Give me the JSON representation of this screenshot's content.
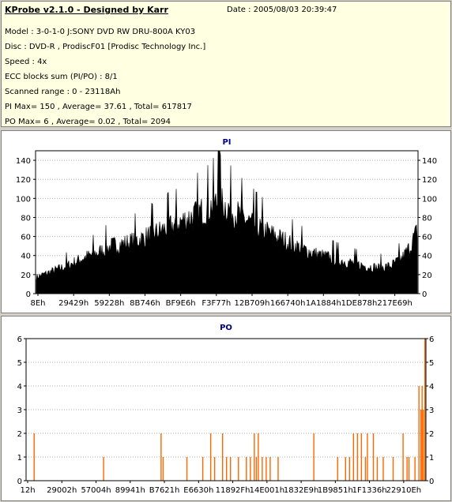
{
  "info": {
    "title": "KProbe v2.1.0 - Designed by Karr",
    "date": "Date : 2005/08/03 20:39:47",
    "model": "Model : 3-0-1-0 J:SONY    DVD RW DRU-800A  KY03",
    "disc": "Disc : DVD-R , ProdiscF01 [Prodisc Technology Inc.]",
    "speed": "Speed : 4x",
    "ecc": "ECC blocks sum (PI/PO) : 8/1",
    "range": "Scanned range : 0 - 23118Ah",
    "pi_stats": "PI Max= 150 , Average= 37.61 , Total= 617817",
    "po_stats": "PO Max= 6 , Average= 0.02 , Total= 2094"
  },
  "chart_data": [
    {
      "type": "area",
      "title": "PI",
      "xlabel": "",
      "ylabel": "",
      "ylim": [
        0,
        150
      ],
      "yticks": [
        0,
        20,
        40,
        60,
        80,
        100,
        120,
        140
      ],
      "xticks": [
        "8Eh",
        "29429h",
        "59228h",
        "8B746h",
        "BF9E6h",
        "F3F77h",
        "12B709h",
        "166740h",
        "1A1884h",
        "1DE878h",
        "217E69h"
      ],
      "x_range_hex": [
        "0h",
        "23118Ah"
      ],
      "grid": true,
      "color": "#000000",
      "x": [
        0.0,
        0.04,
        0.08,
        0.12,
        0.16,
        0.2,
        0.24,
        0.28,
        0.32,
        0.36,
        0.4,
        0.44,
        0.46,
        0.48,
        0.5,
        0.52,
        0.55,
        0.58,
        0.62,
        0.66,
        0.7,
        0.74,
        0.78,
        0.82,
        0.86,
        0.9,
        0.93,
        0.96,
        0.98,
        1.0
      ],
      "values": [
        18,
        24,
        30,
        38,
        44,
        52,
        55,
        60,
        67,
        74,
        82,
        90,
        95,
        100,
        94,
        88,
        80,
        72,
        64,
        56,
        48,
        42,
        38,
        34,
        30,
        28,
        30,
        38,
        50,
        68
      ],
      "peak": {
        "x": 0.48,
        "y": 150
      }
    },
    {
      "type": "bar",
      "title": "PO",
      "xlabel": "",
      "ylabel": "",
      "ylim": [
        0,
        6
      ],
      "yticks": [
        0,
        1,
        2,
        3,
        4,
        5,
        6
      ],
      "xticks": [
        "12h",
        "29002h",
        "57004h",
        "89941h",
        "B7621h",
        "E6630h",
        "11892Fh",
        "14E001h",
        "1832E9h",
        "1B9851h",
        "1F1336h",
        "22910Eh"
      ],
      "grid": true,
      "color": "#ff6600",
      "x": [
        0.015,
        0.19,
        0.335,
        0.34,
        0.4,
        0.44,
        0.46,
        0.47,
        0.49,
        0.5,
        0.51,
        0.53,
        0.55,
        0.56,
        0.57,
        0.575,
        0.58,
        0.59,
        0.6,
        0.61,
        0.63,
        0.72,
        0.78,
        0.8,
        0.81,
        0.82,
        0.83,
        0.84,
        0.85,
        0.855,
        0.87,
        0.88,
        0.895,
        0.92,
        0.945,
        0.955,
        0.96,
        0.975,
        0.985,
        0.99,
        0.993,
        0.996,
        1.0
      ],
      "values": [
        2,
        1,
        2,
        1,
        1,
        1,
        2,
        1,
        2,
        1,
        1,
        1,
        1,
        1,
        2,
        1,
        2,
        1,
        1,
        1,
        1,
        2,
        1,
        1,
        1,
        2,
        2,
        2,
        1,
        2,
        2,
        1,
        1,
        1,
        2,
        1,
        1,
        1,
        4,
        3,
        4,
        3,
        6
      ]
    }
  ]
}
